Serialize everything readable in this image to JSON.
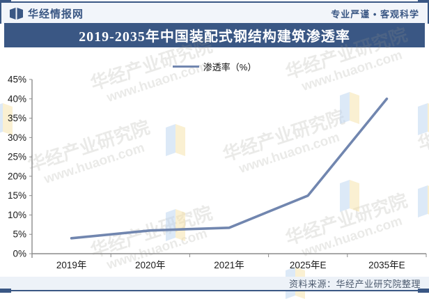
{
  "header": {
    "brand": "华经情报网",
    "slogan": "专业严谨 • 客观科学"
  },
  "title": "2019-2035年中国装配式钢结构建筑渗透率",
  "legend_label": "渗透率（%）",
  "source": "资料来源：华经产业研究院整理",
  "watermark": {
    "line1": "华经产业研究院",
    "line2": "www.huaon.com"
  },
  "colors": {
    "navy": "#3A5784",
    "line": "#7186AF",
    "axis": "#8C8C8C",
    "tick_text": "#1a1a1a",
    "flag_blue": "#BBD4F0",
    "flag_yellow": "#F7E2A6"
  },
  "chart_data": {
    "type": "line",
    "categories": [
      "2019年",
      "2020年",
      "2021年",
      "2025年E",
      "2035年E"
    ],
    "series": [
      {
        "name": "渗透率（%）",
        "values": [
          4,
          6,
          6.7,
          15,
          40
        ]
      }
    ],
    "title": "2019-2035年中国装配式钢结构建筑渗透率",
    "xlabel": "",
    "ylabel": "",
    "ylim": [
      0,
      45
    ],
    "ytick_step": 5,
    "ytick_suffix": "%",
    "grid": false,
    "legend_position": "top-center",
    "marker": "none"
  }
}
